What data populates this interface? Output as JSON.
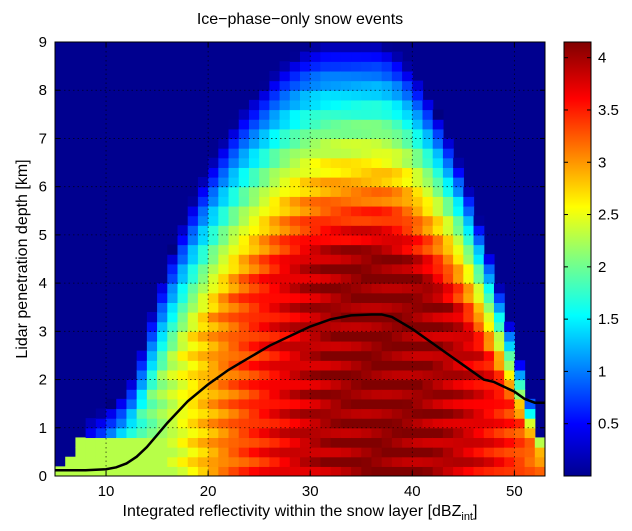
{
  "chart_data": {
    "type": "heatmap",
    "title": "Ice−phase−only snow events",
    "xlabel": "Integrated reflectivity within the snow layer [dBZ",
    "xlabel_sub": "int",
    "xlabel_end": "]",
    "ylabel": "Lidar penetration depth [km]",
    "xlim": [
      5,
      53
    ],
    "ylim": [
      0,
      9
    ],
    "xticks": [
      10,
      20,
      30,
      40,
      50
    ],
    "yticks": [
      0,
      1,
      2,
      3,
      4,
      5,
      6,
      7,
      8,
      9
    ],
    "xtick_labels": [
      "10",
      "20",
      "30",
      "40",
      "50"
    ],
    "ytick_labels": [
      "0",
      "1",
      "2",
      "3",
      "4",
      "5",
      "6",
      "7",
      "8",
      "9"
    ],
    "grid": true,
    "grid_style": "dotted",
    "colorbar": {
      "colormap": "jet",
      "range": [
        0,
        4.15
      ],
      "ticks": [
        0.5,
        1,
        1.5,
        2,
        2.5,
        3,
        3.5,
        4
      ],
      "tick_labels": [
        "0.5",
        "1",
        "1.5",
        "2",
        "2.5",
        "3",
        "3.5",
        "4"
      ]
    },
    "heatmap_envelope": {
      "description_units": "x in dBZ_int, y in km; approximate column tops of non-zero field",
      "x": [
        5,
        7,
        8,
        9,
        10,
        12,
        13,
        15,
        17,
        19,
        21,
        23,
        25,
        27,
        29,
        31,
        33,
        35,
        37,
        39,
        41,
        43,
        45,
        47,
        49,
        51,
        52.5
      ],
      "top_km": [
        0.2,
        0.5,
        1.2,
        1.3,
        1.4,
        1.8,
        2.3,
        3.8,
        5.0,
        6.0,
        6.8,
        7.5,
        8.0,
        8.5,
        8.8,
        9.0,
        9.0,
        9.0,
        9.0,
        8.7,
        8.1,
        7.3,
        6.3,
        5.0,
        3.6,
        2.0,
        0.9
      ]
    },
    "series": [
      {
        "type": "line",
        "color": "#000000",
        "x": [
          5,
          8,
          10,
          11,
          12,
          13,
          14,
          15,
          16,
          18,
          20,
          22,
          24,
          26,
          28,
          30,
          32,
          34,
          36,
          37,
          38,
          40,
          42,
          44,
          46,
          47,
          48,
          50,
          51,
          52,
          53
        ],
        "y": [
          0.12,
          0.12,
          0.14,
          0.18,
          0.26,
          0.4,
          0.6,
          0.85,
          1.1,
          1.55,
          1.9,
          2.2,
          2.45,
          2.7,
          2.9,
          3.1,
          3.25,
          3.33,
          3.35,
          3.35,
          3.3,
          3.05,
          2.75,
          2.45,
          2.15,
          2.0,
          1.95,
          1.75,
          1.6,
          1.52,
          1.52
        ]
      }
    ]
  }
}
